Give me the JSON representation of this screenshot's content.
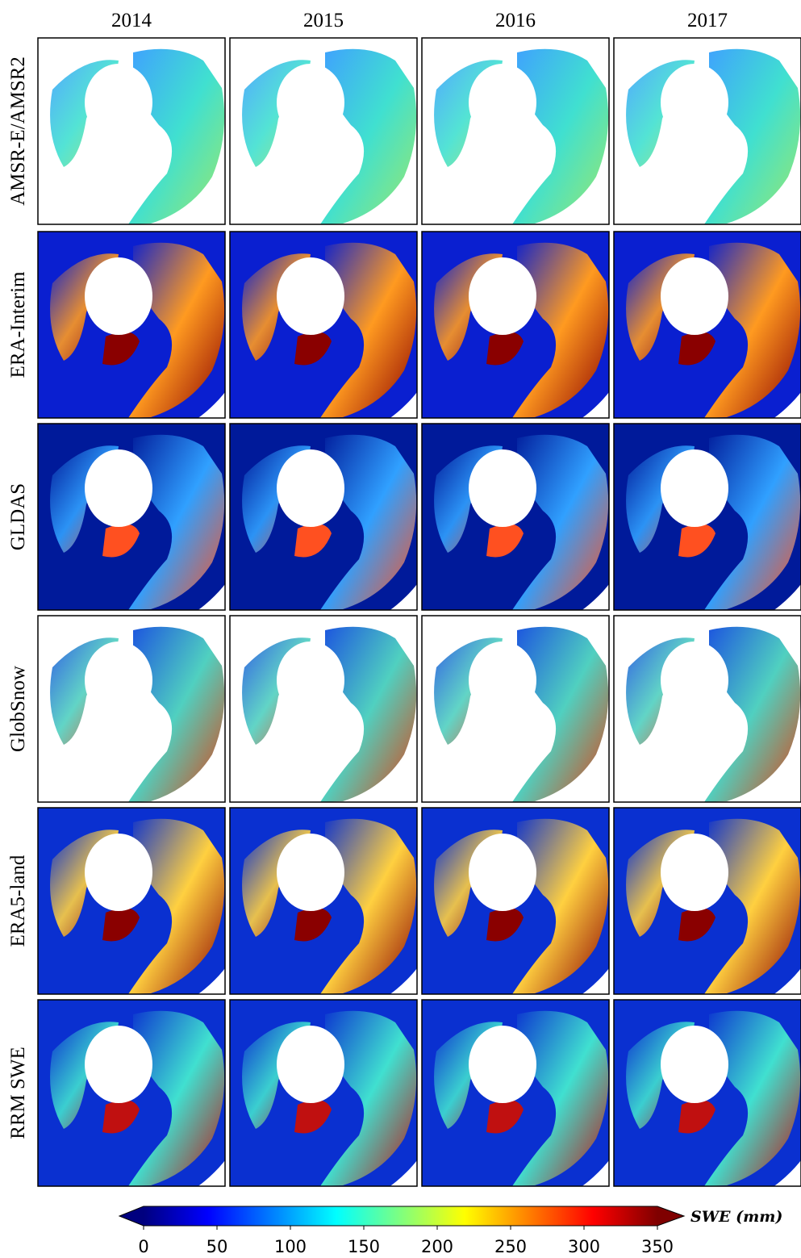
{
  "columns": [
    "2014",
    "2015",
    "2016",
    "2017"
  ],
  "rows": [
    "AMSR-E/AMSR2",
    "ERA-Interim",
    "GLDAS",
    "GlobSnow",
    "ERA5-land",
    "RRM SWE"
  ],
  "colorbar": {
    "label": "SWE (mm)",
    "lim": [
      0,
      350
    ],
    "ticks": [
      0,
      50,
      100,
      150,
      200,
      250,
      300,
      350
    ],
    "colormap": [
      "#00007f",
      "#0000ff",
      "#007fff",
      "#00ffff",
      "#7fff7f",
      "#ffff00",
      "#ff7f00",
      "#ff0000",
      "#7f0000"
    ]
  }
}
